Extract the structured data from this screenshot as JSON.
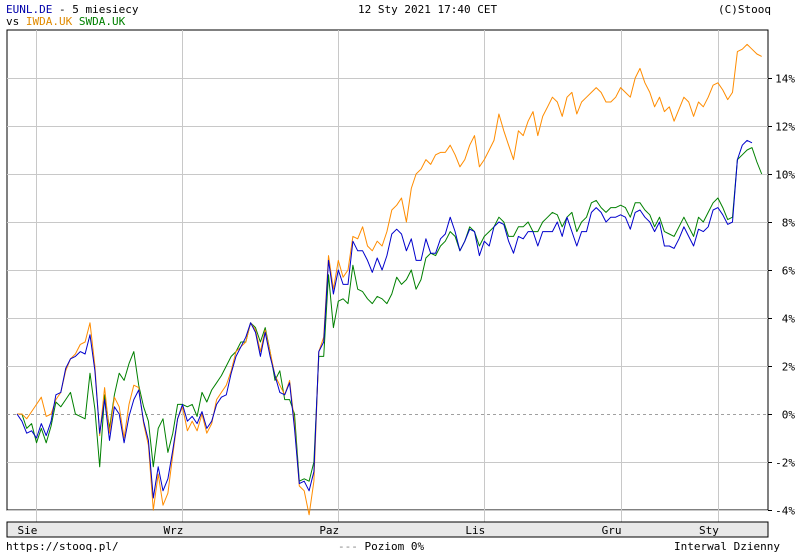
{
  "header": {
    "symbol": "EUNL.DE",
    "period_text": " - 5 miesiecy",
    "vs_label": "vs ",
    "compare_1": "IWDA.UK",
    "compare_2": "SWDA.UK",
    "date": "12 Sty 2021 17:40 CET",
    "copyright": "(C)Stooq"
  },
  "footer": {
    "url": "https://stooq.pl/",
    "legend_dash": "---",
    "legend_label": " Poziom 0%",
    "interval": "Interwal Dzienny"
  },
  "colors": {
    "series_1": "#0000cc",
    "series_2": "#ff8c00",
    "series_3": "#008000",
    "grid": "#c8c8c8",
    "zero_line": "#a0a0a0",
    "axis_band": "#e8e8e8"
  },
  "chart_data": {
    "type": "line",
    "y_unit": "%",
    "ylim": [
      -4.5,
      16
    ],
    "y_ticks": [
      "-4%",
      "-2%",
      "0%",
      "2%",
      "4%",
      "6%",
      "8%",
      "10%",
      "12%",
      "14%"
    ],
    "y_tick_values": [
      -4,
      -2,
      0,
      2,
      4,
      6,
      8,
      10,
      12,
      14
    ],
    "x_labels": [
      "Sie",
      "Wrz",
      "Paz",
      "Lis",
      "Gru",
      "Sty"
    ],
    "x_label_index": [
      4,
      34,
      66,
      96,
      124,
      144
    ],
    "grid": true,
    "zero_line": true,
    "series": [
      {
        "name": "EUNL.DE",
        "color": "#0000cc",
        "values": [
          0.0,
          -0.3,
          -0.8,
          -0.7,
          -1.0,
          -0.4,
          -0.9,
          -0.3,
          0.8,
          0.9,
          1.9,
          2.3,
          2.4,
          2.6,
          2.5,
          3.3,
          1.8,
          -0.8,
          0.6,
          -1.1,
          0.3,
          0.0,
          -1.2,
          -0.1,
          0.6,
          1.0,
          -0.3,
          -1.1,
          -3.5,
          -2.2,
          -3.2,
          -2.7,
          -1.5,
          -0.2,
          0.4,
          -0.3,
          -0.1,
          -0.4,
          0.1,
          -0.6,
          -0.3,
          0.4,
          0.7,
          0.8,
          1.7,
          2.4,
          2.8,
          3.2,
          3.8,
          3.4,
          2.4,
          3.4,
          2.4,
          1.6,
          0.9,
          0.8,
          1.3,
          -0.6,
          -2.9,
          -2.8,
          -3.2,
          -2.4,
          2.6,
          3.0,
          6.4,
          5.0,
          6.0,
          5.4,
          5.4,
          7.2,
          6.8,
          6.8,
          6.4,
          5.9,
          6.5,
          6.0,
          6.6,
          7.5,
          7.7,
          7.5,
          6.8,
          7.3,
          6.4,
          6.4,
          7.3,
          6.7,
          6.7,
          7.3,
          7.5,
          8.2,
          7.6,
          6.8,
          7.2,
          7.7,
          7.6,
          6.6,
          7.2,
          7.0,
          7.8,
          8.0,
          7.9,
          7.2,
          6.7,
          7.4,
          7.3,
          7.6,
          7.6,
          7.0,
          7.6,
          7.6,
          7.6,
          8.0,
          7.4,
          8.2,
          7.6,
          7.0,
          7.6,
          7.6,
          8.4,
          8.6,
          8.4,
          8.0,
          8.2,
          8.2,
          8.3,
          8.2,
          7.7,
          8.4,
          8.5,
          8.2,
          8.0,
          7.6,
          8.0,
          7.0,
          7.0,
          6.9,
          7.3,
          7.8,
          7.4,
          7.0,
          7.7,
          7.6,
          7.8,
          8.5,
          8.6,
          8.3,
          7.9,
          8.0,
          10.6,
          11.2,
          11.4,
          11.3
        ]
      },
      {
        "name": "IWDA.UK",
        "color": "#ff8c00",
        "values": [
          0.0,
          0.0,
          -0.2,
          0.1,
          0.4,
          0.7,
          -0.1,
          0.0,
          0.6,
          0.9,
          1.8,
          2.3,
          2.5,
          2.9,
          3.0,
          3.8,
          2.0,
          -0.9,
          1.1,
          -0.8,
          0.7,
          0.3,
          -1.0,
          0.4,
          1.2,
          1.1,
          -0.4,
          -1.3,
          -4.0,
          -2.5,
          -3.8,
          -3.3,
          -1.7,
          -0.2,
          0.3,
          -0.7,
          -0.3,
          -0.7,
          0.0,
          -0.8,
          -0.4,
          0.6,
          0.9,
          1.2,
          1.8,
          2.6,
          2.8,
          3.0,
          3.8,
          3.5,
          2.6,
          3.5,
          2.6,
          1.6,
          1.2,
          0.8,
          1.4,
          -0.4,
          -3.0,
          -3.2,
          -4.2,
          -2.8,
          2.6,
          3.2,
          6.6,
          5.2,
          6.4,
          5.7,
          6.0,
          7.4,
          7.3,
          7.8,
          7.0,
          6.8,
          7.2,
          7.0,
          7.6,
          8.5,
          8.7,
          9.0,
          8.0,
          9.4,
          10.0,
          10.2,
          10.6,
          10.4,
          10.8,
          10.9,
          10.9,
          11.2,
          10.8,
          10.3,
          10.6,
          11.2,
          11.6,
          10.3,
          10.6,
          11.0,
          11.4,
          12.5,
          11.8,
          11.2,
          10.6,
          11.8,
          11.6,
          12.2,
          12.6,
          11.6,
          12.4,
          12.8,
          13.2,
          13.0,
          12.4,
          13.2,
          13.4,
          12.5,
          13.0,
          13.2,
          13.4,
          13.6,
          13.4,
          13.0,
          13.0,
          13.2,
          13.6,
          13.4,
          13.2,
          14.0,
          14.4,
          13.8,
          13.4,
          12.8,
          13.2,
          12.6,
          12.8,
          12.2,
          12.7,
          13.2,
          13.0,
          12.4,
          13.0,
          12.8,
          13.2,
          13.7,
          13.8,
          13.5,
          13.1,
          13.4,
          15.1,
          15.2,
          15.4,
          15.2,
          15.0,
          14.9
        ]
      },
      {
        "name": "SWDA.UK",
        "color": "#008000",
        "values": [
          0.0,
          0.0,
          -0.6,
          -0.4,
          -1.2,
          -0.6,
          -1.2,
          -0.5,
          0.5,
          0.3,
          0.6,
          0.9,
          0.0,
          -0.1,
          -0.2,
          1.7,
          0.2,
          -2.2,
          0.8,
          -0.6,
          0.8,
          1.7,
          1.4,
          2.1,
          2.6,
          1.2,
          0.3,
          -0.3,
          -2.2,
          -0.6,
          -0.2,
          -1.6,
          -0.8,
          0.4,
          0.4,
          0.3,
          0.4,
          -0.1,
          0.9,
          0.5,
          1.0,
          1.3,
          1.6,
          2.0,
          2.4,
          2.6,
          3.0,
          3.0,
          3.8,
          3.6,
          3.0,
          3.6,
          2.6,
          1.4,
          1.8,
          0.6,
          0.6,
          0.0,
          -2.8,
          -2.7,
          -2.8,
          -2.0,
          2.4,
          2.4,
          5.8,
          3.6,
          4.7,
          4.8,
          4.6,
          6.2,
          5.2,
          5.1,
          4.8,
          4.6,
          4.9,
          4.8,
          4.6,
          5.0,
          5.7,
          5.4,
          5.6,
          6.0,
          5.2,
          5.6,
          6.5,
          6.7,
          6.6,
          7.0,
          7.2,
          7.6,
          7.4,
          6.8,
          7.2,
          7.8,
          7.6,
          7.0,
          7.4,
          7.6,
          7.8,
          8.2,
          8.0,
          7.4,
          7.4,
          7.8,
          7.8,
          8.0,
          7.6,
          7.6,
          8.0,
          8.2,
          8.4,
          8.3,
          7.8,
          8.2,
          8.4,
          7.6,
          8.0,
          8.2,
          8.8,
          8.9,
          8.6,
          8.4,
          8.6,
          8.6,
          8.7,
          8.6,
          8.2,
          8.8,
          8.8,
          8.5,
          8.3,
          7.8,
          8.2,
          7.6,
          7.5,
          7.4,
          7.8,
          8.2,
          7.8,
          7.4,
          8.2,
          8.0,
          8.4,
          8.8,
          9.0,
          8.6,
          8.1,
          8.2,
          10.6,
          10.8,
          11.0,
          11.1,
          10.5,
          10.0
        ]
      }
    ]
  }
}
